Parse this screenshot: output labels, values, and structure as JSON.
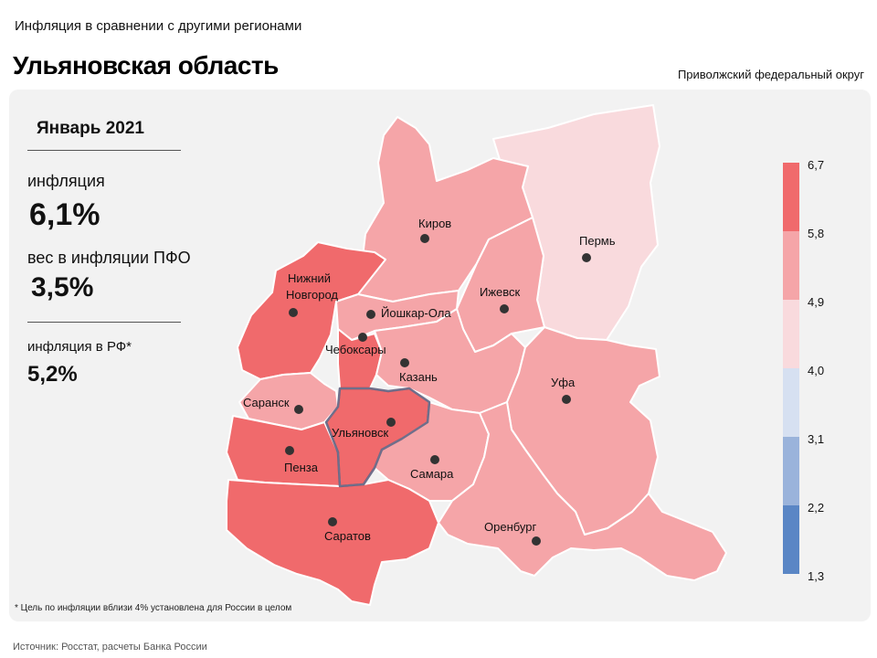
{
  "header": {
    "subtitle": "Инфляция в сравнении с другими регионами",
    "title": "Ульяновская область",
    "district": "Приволжский федеральный округ"
  },
  "stats": {
    "period": "Январь 2021",
    "inflation_label": "инфляция",
    "inflation_value": "6,1%",
    "weight_label": "вес в инфляции ПФО",
    "weight_value": "3,5%",
    "rf_label": "инфляция в РФ*",
    "rf_value": "5,2%"
  },
  "footnote": "* Цель по инфляции вблизи 4% установлена для России в целом",
  "source": "Источник: Росстат, расчеты Банка России",
  "colors": {
    "c1": "#5a86c5",
    "c2": "#9ab3db",
    "c3": "#d6e0f1",
    "c4": "#f9dadd",
    "c5": "#f5a5a8",
    "c6": "#f06a6c",
    "panel": "#f2f2f2",
    "highlight_border": "#4b4b6e"
  },
  "legend": {
    "ticks": [
      "6,7",
      "5,8",
      "4,9",
      "4,0",
      "3,1",
      "2,2",
      "1,3"
    ],
    "bins": [
      {
        "from": 5.8,
        "to": 6.7,
        "color": "#f06a6c"
      },
      {
        "from": 4.9,
        "to": 5.8,
        "color": "#f5a5a8"
      },
      {
        "from": 4.0,
        "to": 4.9,
        "color": "#f9dadd"
      },
      {
        "from": 3.1,
        "to": 4.0,
        "color": "#d6e0f1"
      },
      {
        "from": 2.2,
        "to": 3.1,
        "color": "#9ab3db"
      },
      {
        "from": 1.3,
        "to": 2.2,
        "color": "#5a86c5"
      }
    ]
  },
  "cities": {
    "kirov": "Киров",
    "perm": "Пермь",
    "nn1": "Нижний",
    "nn2": "Новгород",
    "izhevsk": "Ижевск",
    "yoshkarola": "Йошкар-Ола",
    "cheboksary": "Чебоксары",
    "kazan": "Казань",
    "ufa": "Уфа",
    "saransk": "Саранск",
    "ulyanovsk": "Ульяновск",
    "penza": "Пенза",
    "samara": "Самара",
    "orenburg": "Оренбург",
    "saratov": "Саратов"
  },
  "regions": [
    {
      "name": "Кировская область",
      "bin": "4,9–5,8"
    },
    {
      "name": "Пермский край",
      "bin": "4,0–4,9"
    },
    {
      "name": "Нижегородская область",
      "bin": "5,8–6,7"
    },
    {
      "name": "Удмуртская Республика",
      "bin": "4,9–5,8"
    },
    {
      "name": "Республика Марий Эл",
      "bin": "4,9–5,8"
    },
    {
      "name": "Чувашская Республика",
      "bin": "5,8–6,7"
    },
    {
      "name": "Республика Татарстан",
      "bin": "4,9–5,8"
    },
    {
      "name": "Республика Башкортостан",
      "bin": "4,9–5,8"
    },
    {
      "name": "Республика Мордовия",
      "bin": "4,9–5,8"
    },
    {
      "name": "Ульяновская область",
      "bin": "5,8–6,7"
    },
    {
      "name": "Пензенская область",
      "bin": "5,8–6,7"
    },
    {
      "name": "Самарская область",
      "bin": "4,9–5,8"
    },
    {
      "name": "Оренбургская область",
      "bin": "4,9–5,8"
    },
    {
      "name": "Саратовская область",
      "bin": "5,8–6,7"
    }
  ]
}
